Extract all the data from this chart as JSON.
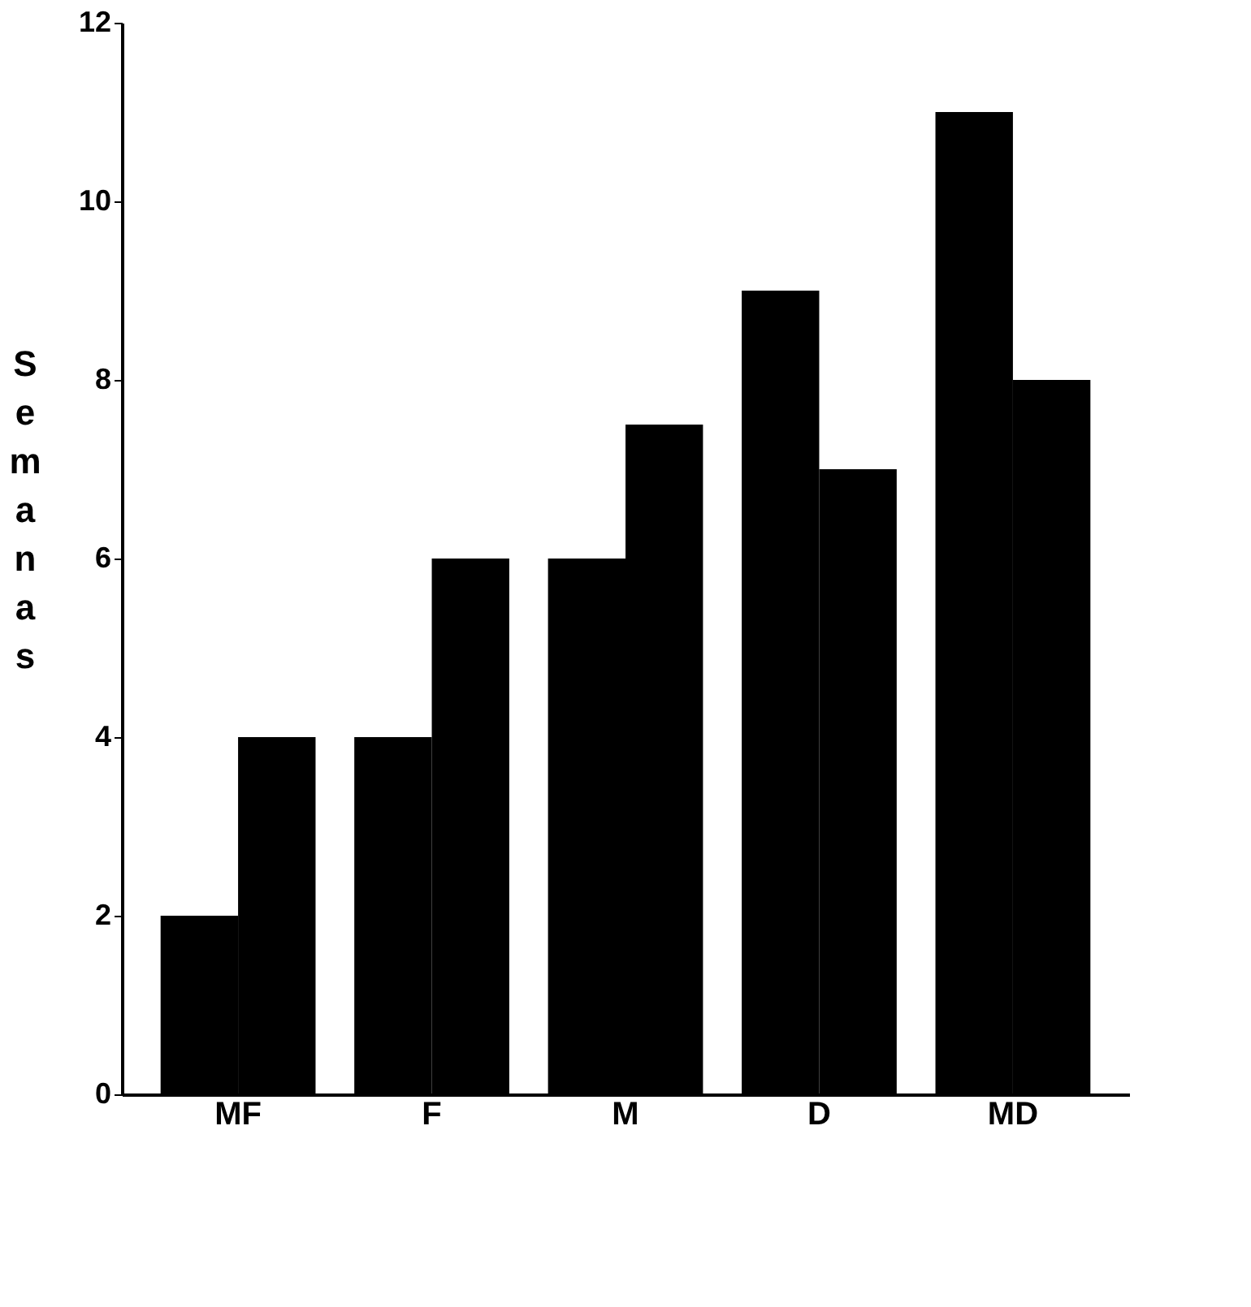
{
  "chart_data": {
    "type": "bar",
    "ylabel": "Semanas",
    "categories": [
      "MF",
      "F",
      "M",
      "D",
      "MD"
    ],
    "series": [
      {
        "color": "#000000",
        "values": [
          2,
          4,
          6,
          9,
          11
        ]
      },
      {
        "color": "#000000",
        "values": [
          4,
          6,
          7.5,
          7,
          8
        ]
      }
    ],
    "ylim": [
      0,
      12
    ],
    "yticks": [
      0,
      2,
      4,
      6,
      8,
      10,
      12
    ],
    "grid": false
  }
}
